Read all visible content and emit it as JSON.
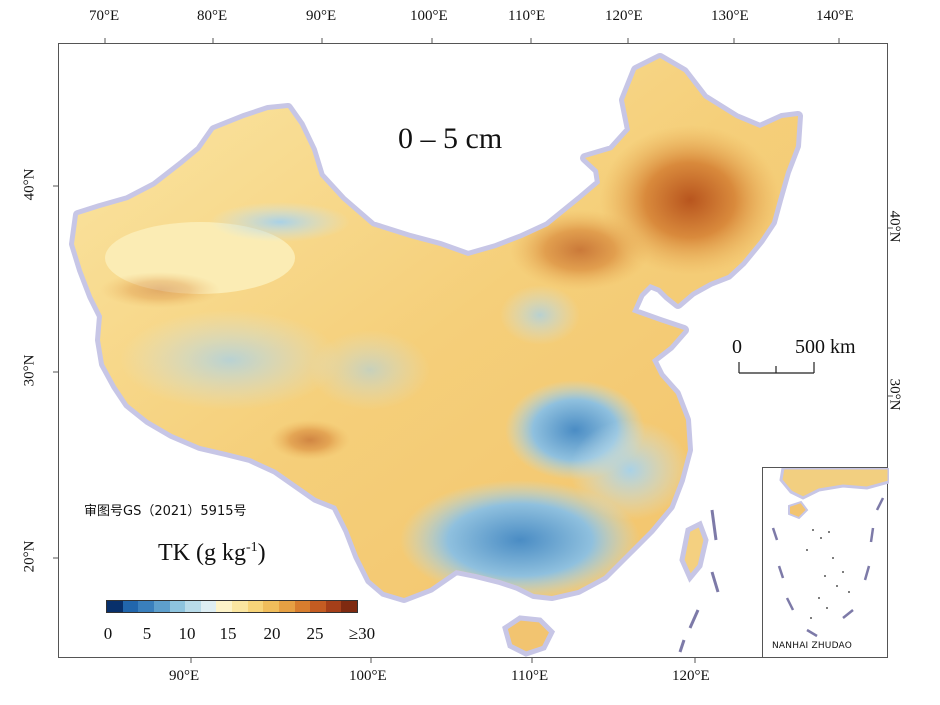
{
  "map": {
    "depth_label": "0 – 5 cm",
    "approval_number": "审图号GS（2021）5915号",
    "legend": {
      "variable": "TK",
      "unit_base": "(g kg",
      "unit_exp": "-1",
      "unit_close": ")",
      "colors": [
        "#08306b",
        "#2166ac",
        "#3a7fbc",
        "#5e9fcc",
        "#8ec4de",
        "#b8dbe9",
        "#deeef3",
        "#fdf3c8",
        "#fbe6a0",
        "#f7d479",
        "#f0bd5b",
        "#e6a043",
        "#d77d2e",
        "#c45c22",
        "#a53f19",
        "#7f2a10"
      ],
      "tick_labels": [
        "0",
        "5",
        "10",
        "15",
        "20",
        "25",
        "≥30"
      ]
    },
    "scale_bar": {
      "start": "0",
      "end": "500 km"
    },
    "inset_label": "NANHAI ZHUDAO",
    "axes": {
      "top_longitudes": [
        "70°E",
        "80°E",
        "90°E",
        "100°E",
        "110°E",
        "120°E",
        "130°E",
        "140°E"
      ],
      "bottom_longitudes": [
        "90°E",
        "100°E",
        "110°E",
        "120°E"
      ],
      "left_latitudes": [
        "40°N",
        "30°N",
        "20°N"
      ],
      "right_latitudes": [
        "40°N",
        "30°N"
      ]
    },
    "colors": {
      "land_warm": "#f5cf7a",
      "land_pale": "#fbe7a6",
      "land_blue": "#9cc8e2",
      "land_deep": "#c9742b",
      "halo": "#c7c6e6"
    }
  }
}
